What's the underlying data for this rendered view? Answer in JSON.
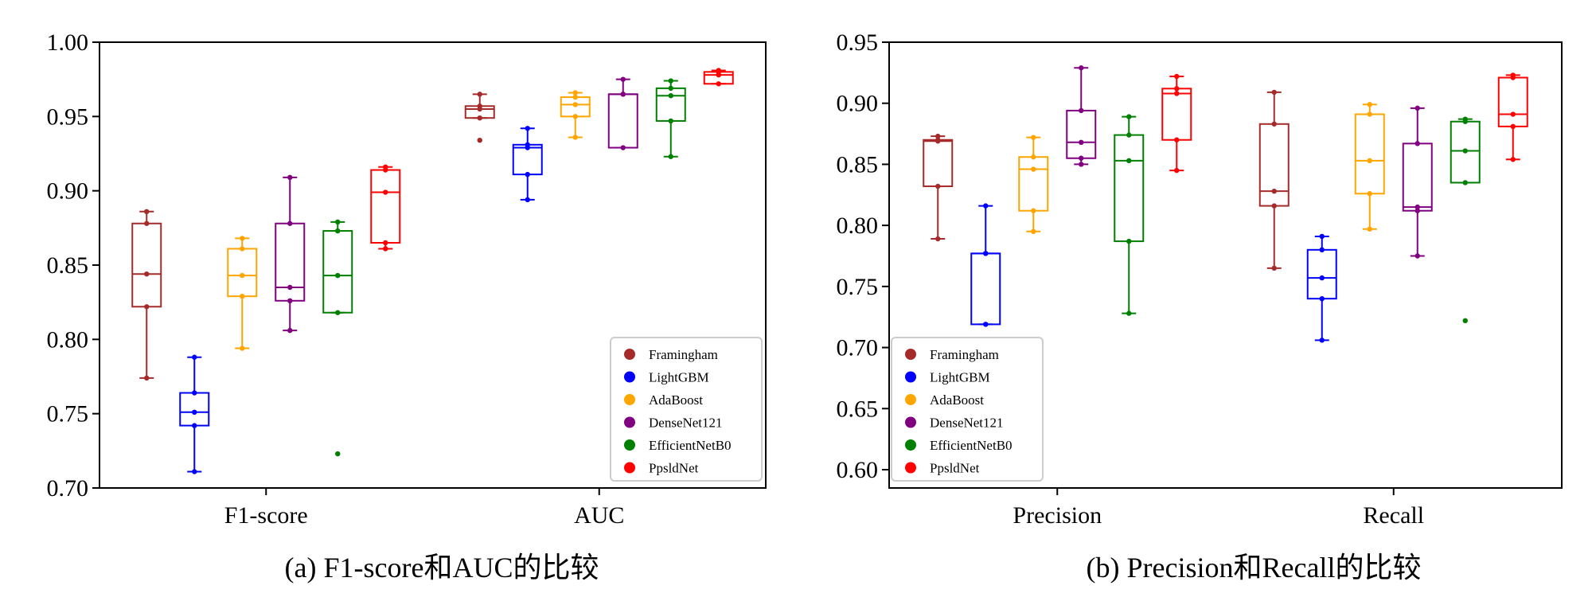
{
  "colors": {
    "Framingham": "#a52a2a",
    "LightGBM": "#0000ff",
    "AdaBoost": "#ffa500",
    "DenseNet121": "#800080",
    "EfficientNetB0": "#008000",
    "PpsldNet": "#ff0000"
  },
  "chart_data": [
    {
      "type": "box",
      "caption": "(a) F1-score和AUC的比较",
      "ylim": [
        0.7,
        1.0
      ],
      "yticks": [
        "0.70",
        "0.75",
        "0.80",
        "0.85",
        "0.90",
        "0.95",
        "1.00"
      ],
      "categories": [
        "F1-score",
        "AUC"
      ],
      "legend": {
        "position": "lower-right",
        "entries": [
          "Framingham",
          "LightGBM",
          "AdaBoost",
          "DenseNet121",
          "EfficientNetB0",
          "PpsldNet"
        ]
      },
      "groups": [
        {
          "category": "F1-score",
          "boxes": [
            {
              "model": "Framingham",
              "q1": 0.822,
              "median": 0.844,
              "q3": 0.878,
              "whisker_low": 0.774,
              "whisker_high": 0.886,
              "points": [
                0.886,
                0.878,
                0.844,
                0.822,
                0.774
              ],
              "outliers": []
            },
            {
              "model": "LightGBM",
              "q1": 0.742,
              "median": 0.751,
              "q3": 0.764,
              "whisker_low": 0.711,
              "whisker_high": 0.788,
              "points": [
                0.788,
                0.764,
                0.751,
                0.742,
                0.711
              ],
              "outliers": []
            },
            {
              "model": "AdaBoost",
              "q1": 0.829,
              "median": 0.843,
              "q3": 0.861,
              "whisker_low": 0.794,
              "whisker_high": 0.868,
              "points": [
                0.868,
                0.861,
                0.843,
                0.829,
                0.794
              ],
              "outliers": []
            },
            {
              "model": "DenseNet121",
              "q1": 0.826,
              "median": 0.835,
              "q3": 0.878,
              "whisker_low": 0.806,
              "whisker_high": 0.909,
              "points": [
                0.909,
                0.878,
                0.835,
                0.826,
                0.806
              ],
              "outliers": []
            },
            {
              "model": "EfficientNetB0",
              "q1": 0.818,
              "median": 0.843,
              "q3": 0.873,
              "whisker_low": 0.818,
              "whisker_high": 0.879,
              "points": [
                0.879,
                0.873,
                0.843,
                0.818
              ],
              "outliers": [
                0.723
              ]
            },
            {
              "model": "PpsldNet",
              "q1": 0.865,
              "median": 0.899,
              "q3": 0.914,
              "whisker_low": 0.861,
              "whisker_high": 0.916,
              "points": [
                0.916,
                0.914,
                0.899,
                0.865,
                0.861
              ],
              "outliers": []
            }
          ]
        },
        {
          "category": "AUC",
          "boxes": [
            {
              "model": "Framingham",
              "q1": 0.949,
              "median": 0.955,
              "q3": 0.957,
              "whisker_low": 0.949,
              "whisker_high": 0.965,
              "points": [
                0.965,
                0.957,
                0.955,
                0.949
              ],
              "outliers": [
                0.934
              ]
            },
            {
              "model": "LightGBM",
              "q1": 0.911,
              "median": 0.929,
              "q3": 0.931,
              "whisker_low": 0.894,
              "whisker_high": 0.942,
              "points": [
                0.942,
                0.931,
                0.929,
                0.911,
                0.894
              ],
              "outliers": []
            },
            {
              "model": "AdaBoost",
              "q1": 0.95,
              "median": 0.958,
              "q3": 0.963,
              "whisker_low": 0.936,
              "whisker_high": 0.966,
              "points": [
                0.966,
                0.963,
                0.958,
                0.95,
                0.936
              ],
              "outliers": []
            },
            {
              "model": "DenseNet121",
              "q1": 0.929,
              "median": 0.965,
              "q3": 0.965,
              "whisker_low": 0.929,
              "whisker_high": 0.975,
              "points": [
                0.975,
                0.965,
                0.965,
                0.929
              ],
              "outliers": []
            },
            {
              "model": "EfficientNetB0",
              "q1": 0.947,
              "median": 0.964,
              "q3": 0.969,
              "whisker_low": 0.923,
              "whisker_high": 0.974,
              "points": [
                0.974,
                0.969,
                0.964,
                0.947,
                0.923
              ],
              "outliers": []
            },
            {
              "model": "PpsldNet",
              "q1": 0.972,
              "median": 0.978,
              "q3": 0.98,
              "whisker_low": 0.972,
              "whisker_high": 0.981,
              "points": [
                0.981,
                0.98,
                0.978,
                0.972
              ],
              "outliers": []
            }
          ]
        }
      ]
    },
    {
      "type": "box",
      "caption": "(b) Precision和Recall的比较",
      "ylim": [
        0.585,
        0.95
      ],
      "yticks": [
        "0.60",
        "0.65",
        "0.70",
        "0.75",
        "0.80",
        "0.85",
        "0.90",
        "0.95"
      ],
      "categories": [
        "Precision",
        "Recall"
      ],
      "legend": {
        "position": "lower-left",
        "entries": [
          "Framingham",
          "LightGBM",
          "AdaBoost",
          "DenseNet121",
          "EfficientNetB0",
          "PpsldNet"
        ]
      },
      "groups": [
        {
          "category": "Precision",
          "boxes": [
            {
              "model": "Framingham",
              "q1": 0.832,
              "median": 0.869,
              "q3": 0.87,
              "whisker_low": 0.789,
              "whisker_high": 0.873,
              "points": [
                0.873,
                0.87,
                0.869,
                0.832,
                0.789
              ],
              "outliers": []
            },
            {
              "model": "LightGBM",
              "q1": 0.719,
              "median": 0.777,
              "q3": 0.777,
              "whisker_low": 0.719,
              "whisker_high": 0.816,
              "points": [
                0.816,
                0.777,
                0.777,
                0.719,
                0.719
              ],
              "outliers": []
            },
            {
              "model": "AdaBoost",
              "q1": 0.812,
              "median": 0.846,
              "q3": 0.856,
              "whisker_low": 0.795,
              "whisker_high": 0.872,
              "points": [
                0.872,
                0.856,
                0.846,
                0.812,
                0.795
              ],
              "outliers": []
            },
            {
              "model": "DenseNet121",
              "q1": 0.855,
              "median": 0.868,
              "q3": 0.894,
              "whisker_low": 0.85,
              "whisker_high": 0.929,
              "points": [
                0.929,
                0.894,
                0.868,
                0.855,
                0.85
              ],
              "outliers": []
            },
            {
              "model": "EfficientNetB0",
              "q1": 0.787,
              "median": 0.853,
              "q3": 0.874,
              "whisker_low": 0.728,
              "whisker_high": 0.889,
              "points": [
                0.889,
                0.874,
                0.853,
                0.787,
                0.728
              ],
              "outliers": []
            },
            {
              "model": "PpsldNet",
              "q1": 0.87,
              "median": 0.908,
              "q3": 0.912,
              "whisker_low": 0.845,
              "whisker_high": 0.922,
              "points": [
                0.922,
                0.912,
                0.908,
                0.87,
                0.845
              ],
              "outliers": []
            }
          ]
        },
        {
          "category": "Recall",
          "boxes": [
            {
              "model": "Framingham",
              "q1": 0.816,
              "median": 0.828,
              "q3": 0.883,
              "whisker_low": 0.765,
              "whisker_high": 0.909,
              "points": [
                0.909,
                0.883,
                0.828,
                0.816,
                0.765
              ],
              "outliers": []
            },
            {
              "model": "LightGBM",
              "q1": 0.74,
              "median": 0.757,
              "q3": 0.78,
              "whisker_low": 0.706,
              "whisker_high": 0.791,
              "points": [
                0.791,
                0.78,
                0.757,
                0.74,
                0.706
              ],
              "outliers": []
            },
            {
              "model": "AdaBoost",
              "q1": 0.826,
              "median": 0.853,
              "q3": 0.891,
              "whisker_low": 0.797,
              "whisker_high": 0.899,
              "points": [
                0.899,
                0.891,
                0.853,
                0.826,
                0.797
              ],
              "outliers": []
            },
            {
              "model": "DenseNet121",
              "q1": 0.812,
              "median": 0.815,
              "q3": 0.867,
              "whisker_low": 0.775,
              "whisker_high": 0.896,
              "points": [
                0.896,
                0.867,
                0.815,
                0.812,
                0.775
              ],
              "outliers": []
            },
            {
              "model": "EfficientNetB0",
              "q1": 0.835,
              "median": 0.861,
              "q3": 0.885,
              "whisker_low": 0.835,
              "whisker_high": 0.887,
              "points": [
                0.887,
                0.885,
                0.861,
                0.835
              ],
              "outliers": [
                0.722
              ]
            },
            {
              "model": "PpsldNet",
              "q1": 0.881,
              "median": 0.891,
              "q3": 0.921,
              "whisker_low": 0.854,
              "whisker_high": 0.923,
              "points": [
                0.923,
                0.921,
                0.891,
                0.881,
                0.854
              ],
              "outliers": []
            }
          ]
        }
      ]
    }
  ]
}
